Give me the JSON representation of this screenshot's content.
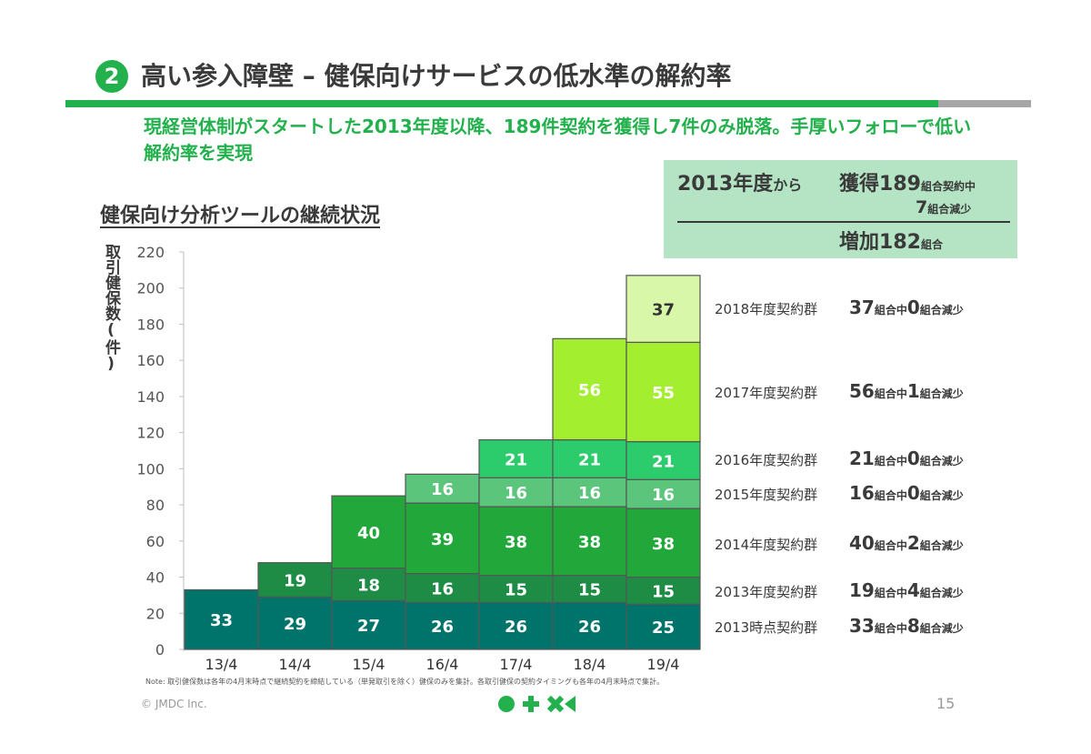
{
  "header": {
    "badge": "2",
    "title": "高い参入障壁 – 健保向けサービスの低水準の解約率",
    "subtitle": "現経営体制がスタートした2013年度以降、189件契約を獲得し7件のみ脱落。手厚いフォローで低い解約率を実現"
  },
  "summary": {
    "since": "2013年度",
    "since_suffix": "から",
    "acquired_prefix": "獲得",
    "acquired_value": "189",
    "acquired_suffix": "組合契約中",
    "lost_value": "7",
    "lost_suffix": "組合減少",
    "net_prefix": "増加",
    "net_value": "182",
    "net_suffix": "組合"
  },
  "section_title": "健保向け分析ツールの継続状況",
  "cohorts": [
    {
      "name": "2018年度契約群",
      "value": "37",
      "mid": "組合中",
      "lost": "0",
      "end": "組合減少"
    },
    {
      "name": "2017年度契約群",
      "value": "56",
      "mid": "組合中",
      "lost": "1",
      "end": "組合減少"
    },
    {
      "name": "2016年度契約群",
      "value": "21",
      "mid": "組合中",
      "lost": "0",
      "end": "組合減少"
    },
    {
      "name": "2015年度契約群",
      "value": "16",
      "mid": "組合中",
      "lost": "0",
      "end": "組合減少"
    },
    {
      "name": "2014年度契約群",
      "value": "40",
      "mid": "組合中",
      "lost": "2",
      "end": "組合減少"
    },
    {
      "name": "2013年度契約群",
      "value": "19",
      "mid": "組合中",
      "lost": "4",
      "end": "組合減少"
    },
    {
      "name": "2013時点契約群",
      "value": "33",
      "mid": "組合中",
      "lost": "8",
      "end": "組合減少"
    }
  ],
  "chart_data": {
    "type": "bar",
    "stacked": true,
    "ylabel": "取引健保数(件)",
    "ylim": [
      0,
      220
    ],
    "yticks": [
      0,
      20,
      40,
      60,
      80,
      100,
      120,
      140,
      160,
      180,
      200,
      220
    ],
    "grid": false,
    "categories": [
      "13/4",
      "14/4",
      "15/4",
      "16/4",
      "17/4",
      "18/4",
      "19/4"
    ],
    "series": [
      {
        "color": "#00736b",
        "values": [
          33,
          29,
          27,
          26,
          26,
          26,
          25
        ]
      },
      {
        "color": "#1e8c45",
        "values": [
          0,
          19,
          18,
          16,
          15,
          15,
          15
        ]
      },
      {
        "color": "#22a83a",
        "values": [
          0,
          0,
          40,
          39,
          38,
          38,
          38
        ]
      },
      {
        "color": "#5bc57c",
        "values": [
          0,
          0,
          0,
          16,
          16,
          16,
          16
        ]
      },
      {
        "color": "#2ccb6b",
        "values": [
          0,
          0,
          0,
          0,
          21,
          21,
          21
        ]
      },
      {
        "color": "#a3ee2e",
        "values": [
          0,
          0,
          0,
          0,
          0,
          56,
          55
        ]
      },
      {
        "color": "#d8f7a8",
        "values": [
          0,
          0,
          0,
          0,
          0,
          0,
          37
        ]
      }
    ]
  },
  "footer": {
    "note": "Note: 取引健保数は各年の4月末時点で継続契約を締結している（単発取引を除く）健保のみを集計。各取引健保の契約タイミングも各年の4月末時点で集計。",
    "copyright": "© JMDC Inc.",
    "page": "15"
  }
}
